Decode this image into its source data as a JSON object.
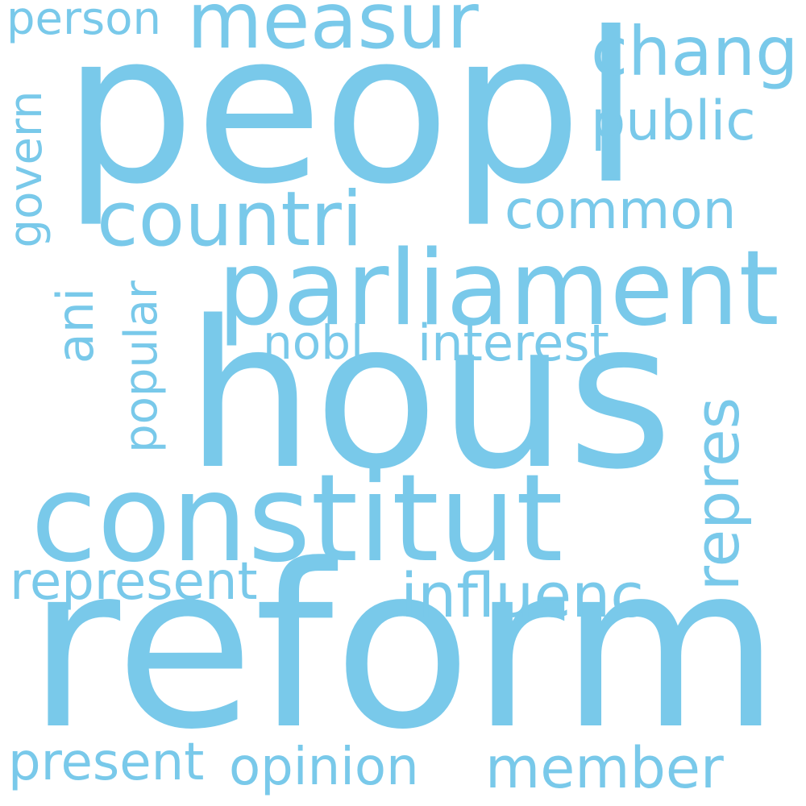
{
  "word_cloud": {
    "color": "#79c9ea",
    "words": [
      {
        "text": "peopl"
      },
      {
        "text": "reform"
      },
      {
        "text": "hous"
      },
      {
        "text": "constitut"
      },
      {
        "text": "parliament"
      },
      {
        "text": "measur"
      },
      {
        "text": "countri"
      },
      {
        "text": "chang"
      },
      {
        "text": "public"
      },
      {
        "text": "common"
      },
      {
        "text": "interest"
      },
      {
        "text": "nobl"
      },
      {
        "text": "represent"
      },
      {
        "text": "influenc"
      },
      {
        "text": "present"
      },
      {
        "text": "opinion"
      },
      {
        "text": "member"
      },
      {
        "text": "person"
      },
      {
        "text": "govern"
      },
      {
        "text": "ani"
      },
      {
        "text": "popular"
      },
      {
        "text": "repres"
      }
    ]
  }
}
